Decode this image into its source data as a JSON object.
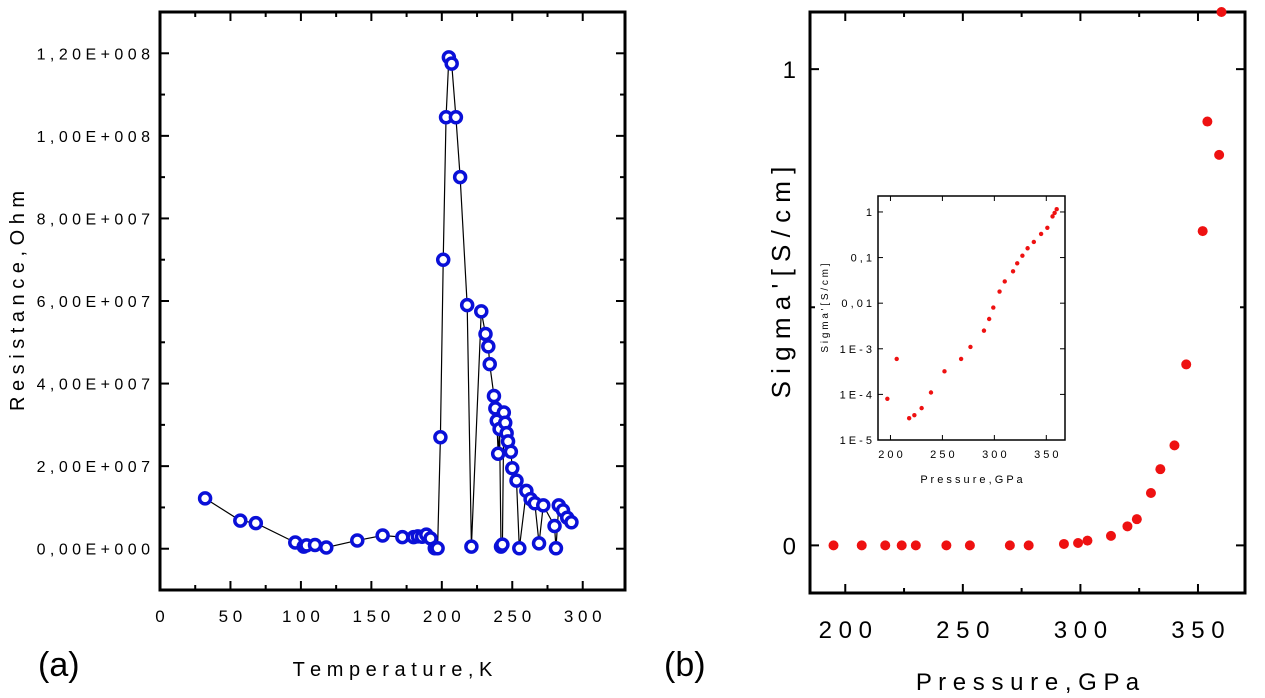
{
  "panels": {
    "a": {
      "tag": "(a)",
      "chart_data": {
        "type": "line",
        "title": "",
        "xlabel": "T e m p e r a t u r e ,  K",
        "ylabel": "R e s i s t a n c e ,  O h m",
        "xlim": [
          0,
          330
        ],
        "ylim": [
          -10000000.0,
          130000000.0
        ],
        "x_ticks": [
          0,
          50,
          100,
          150,
          200,
          250,
          300
        ],
        "x_tick_labels": [
          "0",
          "5 0",
          "1 0 0",
          "1 5 0",
          "2 0 0",
          "2 5 0",
          "3 0 0"
        ],
        "y_ticks": [
          0,
          20000000.0,
          40000000.0,
          60000000.0,
          80000000.0,
          100000000.0,
          120000000.0
        ],
        "y_tick_labels": [
          "0 , 0 0 E + 0 0 0",
          "2 , 0 0 E + 0 0 7",
          "4 , 0 0 E + 0 0 7",
          "6 , 0 0 E + 0 0 7",
          "8 , 0 0 E + 0 0 7",
          "1 , 0 0 E + 0 0 8",
          "1 , 2 0 E + 0 0 8"
        ],
        "marker": "open-circle",
        "marker_color": "#0a10d8",
        "line_color": "#000000",
        "series": [
          {
            "x": [
              32,
              57,
              68,
              96,
              102,
              104,
              110,
              118,
              140,
              158,
              172,
              180,
              183,
              186,
              189,
              192,
              195,
              197,
              199,
              201,
              203,
              205,
              207,
              210,
              213,
              218,
              221,
              228,
              231,
              233,
              234,
              237,
              238,
              239,
              240,
              241,
              242,
              243,
              244,
              245,
              246,
              247,
              249,
              250,
              253,
              255,
              260,
              263,
              266,
              269,
              272,
              280,
              281,
              283,
              286,
              289,
              292
            ],
            "y": [
              12200000.0,
              6800000.0,
              6200000.0,
              1500000.0,
              500000.0,
              800000.0,
              900000.0,
              300000.0,
              2000000.0,
              3200000.0,
              2800000.0,
              2800000.0,
              3000000.0,
              2900000.0,
              3400000.0,
              2500000.0,
              100000.0,
              100000.0,
              27000000.0,
              70000000.0,
              104500000.0,
              119000000.0,
              117500000.0,
              104500000.0,
              90000000.0,
              59000000.0,
              500000.0,
              57500000.0,
              52000000.0,
              49000000.0,
              44700000.0,
              37000000.0,
              34000000.0,
              31000000.0,
              23000000.0,
              29000000.0,
              500000.0,
              1000000.0,
              33000000.0,
              30500000.0,
              28000000.0,
              26000000.0,
              23500000.0,
              19500000.0,
              16500000.0,
              100000.0,
              14000000.0,
              12000000.0,
              11000000.0,
              1300000.0,
              10500000.0,
              5500000.0,
              100000.0,
              10500000.0,
              9300000.0,
              7500000.0,
              6400000.0
            ]
          }
        ]
      }
    },
    "b": {
      "tag": "(b)",
      "chart_data": {
        "type": "scatter",
        "title": "",
        "xlabel": "P r e s s u r e ,  G P a",
        "ylabel": "S i g m a '  [ S / c m ]",
        "xlim": [
          185,
          370
        ],
        "ylim": [
          -0.1,
          1.12
        ],
        "x_ticks": [
          200,
          250,
          300,
          350
        ],
        "x_tick_labels": [
          "2 0 0",
          "2 5 0",
          "3 0 0",
          "3 5 0"
        ],
        "y_ticks": [
          0,
          1
        ],
        "y_tick_labels": [
          "0",
          "1"
        ],
        "marker_color": "#ee1111",
        "series": [
          {
            "x": [
              195,
              207,
              217,
              224,
              230,
              243,
              253,
              270,
              278,
              293,
              299,
              303,
              313,
              320,
              324,
              330,
              334,
              340,
              345,
              352,
              354,
              359,
              360
            ],
            "y": [
              0,
              0,
              0,
              0,
              0,
              0,
              0,
              0,
              0,
              0.003,
              0.005,
              0.01,
              0.02,
              0.04,
              0.055,
              0.11,
              0.16,
              0.21,
              0.38,
              0.66,
              0.89,
              0.82,
              1.12
            ]
          }
        ],
        "inset": {
          "type": "scatter",
          "xlabel": "P r e s s u r e ,  G P a",
          "ylabel": "S i g m a '  [ S / c m ]",
          "xlim": [
            188,
            368
          ],
          "log_y": true,
          "y_exp_range": [
            -5,
            0.35
          ],
          "x_ticks": [
            200,
            250,
            300,
            350
          ],
          "x_tick_labels": [
            "2 0 0",
            "2 5 0",
            "3 0 0",
            "3 5 0"
          ],
          "y_ticks": [
            1e-05,
            0.0001,
            0.001,
            0.01,
            0.1,
            1
          ],
          "y_tick_labels": [
            "1 E - 5",
            "1 E - 4",
            "1 E - 3",
            "0 , 0 1",
            "0 , 1",
            "1"
          ],
          "marker_color": "#ee1111",
          "series": [
            {
              "x": [
                197,
                206,
                218,
                223,
                230,
                239,
                252,
                268,
                277,
                290,
                295,
                299,
                305,
                310,
                318,
                322,
                327,
                332,
                338,
                345,
                351,
                356,
                358,
                360
              ],
              "y": [
                8e-05,
                0.0006,
                3e-05,
                3.5e-05,
                5e-05,
                0.00011,
                0.00032,
                0.0006,
                0.0011,
                0.0025,
                0.0045,
                0.008,
                0.018,
                0.03,
                0.05,
                0.075,
                0.11,
                0.16,
                0.22,
                0.33,
                0.45,
                0.8,
                0.95,
                1.15
              ]
            }
          ]
        }
      }
    }
  }
}
